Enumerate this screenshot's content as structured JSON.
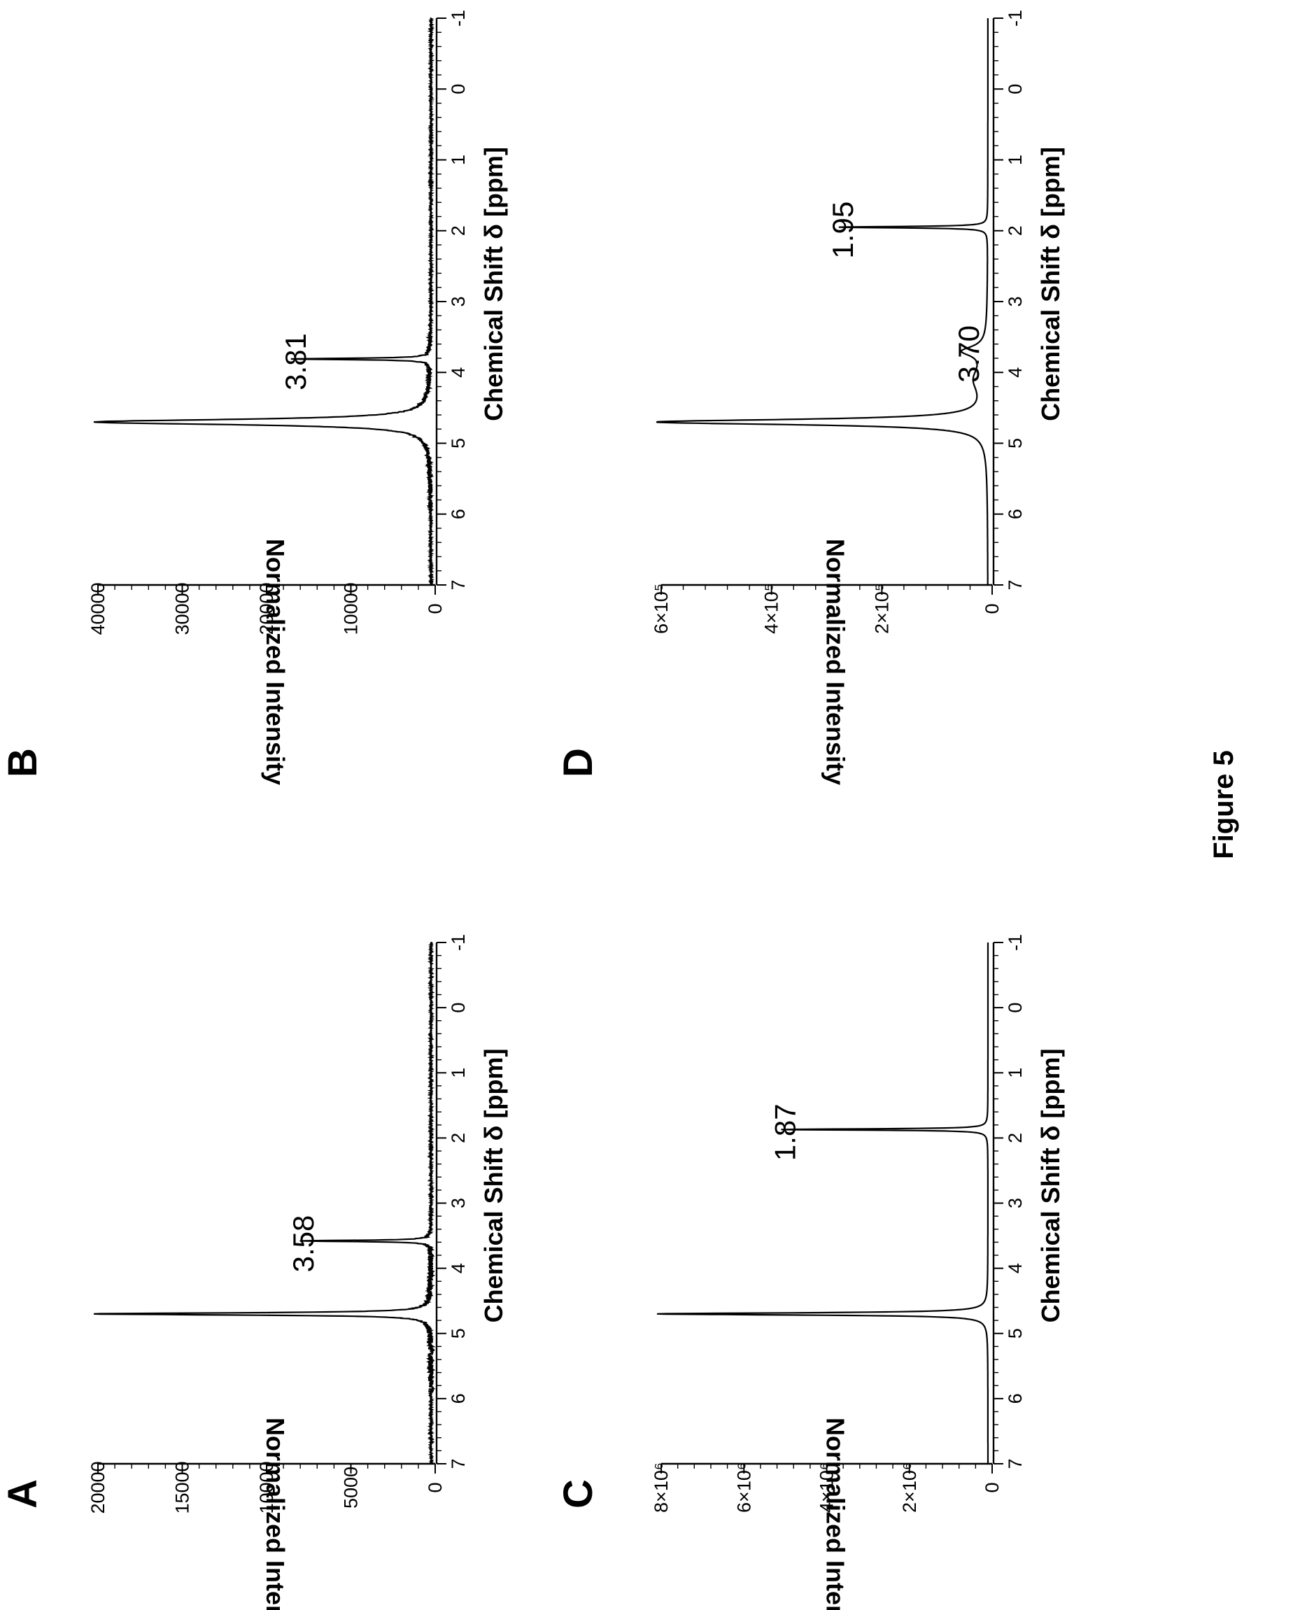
{
  "figure": {
    "caption": "Figure 5",
    "orientation": "rotated-90-ccw"
  },
  "chart_data": [
    {
      "panel": "A",
      "type": "line",
      "xlabel": "Chemical Shift δ [ppm]",
      "ylabel": "Normalized Intensity",
      "xlim": [
        7,
        -1
      ],
      "ylim": [
        0,
        20000
      ],
      "xticks": [
        "7",
        "6",
        "5",
        "4",
        "3",
        "2",
        "1",
        "0",
        "-1"
      ],
      "yticks": [
        "0",
        "5000",
        "10000",
        "15000",
        "20000"
      ],
      "peaks": [
        {
          "ppm": 4.7,
          "intensity": 20000,
          "width": 0.02,
          "note": "off-scale"
        },
        {
          "ppm": 3.58,
          "intensity": 7800,
          "width": 0.012
        }
      ],
      "annotations": [
        {
          "text": "3.58",
          "ppm": 3.58,
          "intensity": 7800
        }
      ],
      "noise": 150
    },
    {
      "panel": "B",
      "type": "line",
      "xlabel": "Chemical Shift δ [ppm]",
      "ylabel": "Normalized Intensity",
      "xlim": [
        7,
        -1
      ],
      "ylim": [
        0,
        40000
      ],
      "xticks": [
        "7",
        "6",
        "5",
        "4",
        "3",
        "2",
        "1",
        "0",
        "-1"
      ],
      "yticks": [
        "0",
        "10000",
        "20000",
        "30000",
        "40000"
      ],
      "peaks": [
        {
          "ppm": 4.7,
          "intensity": 40000,
          "width": 0.045,
          "note": "off-scale"
        },
        {
          "ppm": 3.81,
          "intensity": 16500,
          "width": 0.012
        }
      ],
      "annotations": [
        {
          "text": "3.81",
          "ppm": 3.81,
          "intensity": 16500
        }
      ],
      "noise": 250
    },
    {
      "panel": "C",
      "type": "line",
      "xlabel": "Chemical Shift δ [ppm]",
      "ylabel": "Normalized Intensity",
      "xlim": [
        7,
        -1
      ],
      "ylim": [
        0,
        8000000
      ],
      "xticks": [
        "7",
        "6",
        "5",
        "4",
        "3",
        "2",
        "1",
        "0",
        "-1"
      ],
      "yticks": [
        "0",
        "2×10⁶",
        "4×10⁶",
        "6×10⁶",
        "8×10⁶"
      ],
      "peaks": [
        {
          "ppm": 4.7,
          "intensity": 8000000,
          "width": 0.02,
          "note": "off-scale"
        },
        {
          "ppm": 1.87,
          "intensity": 5000000,
          "width": 0.012
        }
      ],
      "annotations": [
        {
          "text": "1.87",
          "ppm": 1.87,
          "intensity": 5000000
        }
      ],
      "noise": 0
    },
    {
      "panel": "D",
      "type": "line",
      "xlabel": "Chemical Shift δ [ppm]",
      "ylabel": "Normalized Intensity",
      "xlim": [
        7,
        -1
      ],
      "ylim": [
        0,
        600000
      ],
      "xticks": [
        "7",
        "6",
        "5",
        "4",
        "3",
        "2",
        "1",
        "0",
        "-1"
      ],
      "yticks": [
        "0",
        "2×10⁵",
        "4×10⁵",
        "6×10⁵"
      ],
      "peaks": [
        {
          "ppm": 4.7,
          "intensity": 600000,
          "width": 0.045,
          "note": "off-scale"
        },
        {
          "ppm": 3.7,
          "intensity": 42000,
          "width": 0.08
        },
        {
          "ppm": 4.1,
          "intensity": 22000,
          "width": 0.22
        },
        {
          "ppm": 1.95,
          "intensity": 270000,
          "width": 0.012
        }
      ],
      "annotations": [
        {
          "text": "3.70",
          "ppm": 3.7,
          "intensity": 42000
        },
        {
          "text": "1.95",
          "ppm": 1.95,
          "intensity": 270000
        }
      ],
      "noise": 0
    }
  ]
}
